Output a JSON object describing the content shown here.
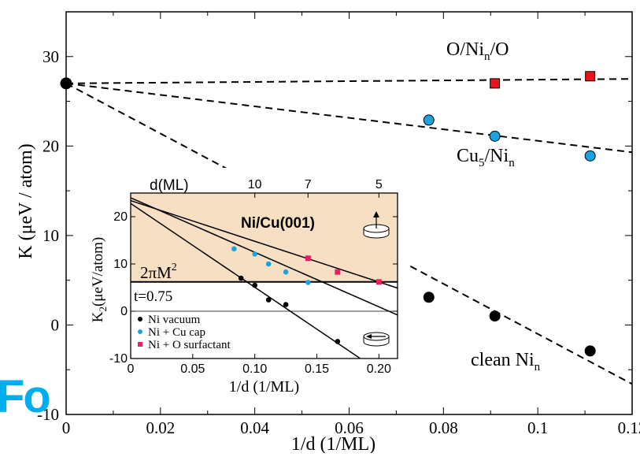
{
  "watermark": "Fo",
  "chart_data": [
    {
      "type": "scatter",
      "title": "",
      "xlabel": "1/d (1/ML)",
      "ylabel": "K (μeV / atom)",
      "xlim": [
        0,
        0.12
      ],
      "ylim": [
        -10,
        35
      ],
      "xticks": [
        0,
        0.02,
        0.04,
        0.06,
        0.08,
        0.1,
        0.12
      ],
      "xtick_labels": [
        "0",
        "0.02",
        "0.04",
        "0.06",
        "0.08",
        "0.1",
        "0.12"
      ],
      "yticks": [
        -10,
        0,
        10,
        20,
        30
      ],
      "ytick_labels": [
        "-10",
        "0",
        "10",
        "20",
        "30"
      ],
      "grid": false,
      "origin_point": {
        "x": 0,
        "y": 27,
        "color": "#000000"
      },
      "series": [
        {
          "name": "O/Ni_n/O",
          "label_main": "O/Ni",
          "label_sub": "n",
          "label_tail": "/O",
          "marker": "square",
          "color": "#e8141b",
          "x": [
            0.0909,
            0.1111
          ],
          "y": [
            27.0,
            27.8
          ],
          "fit": {
            "x0": 0,
            "y0": 27.0,
            "x1": 0.12,
            "y1": 27.5
          }
        },
        {
          "name": "Cu_5/Ni_n",
          "label_main": "Cu",
          "label_sub1": "5",
          "label_mid": "/Ni",
          "label_sub2": "n",
          "marker": "circle",
          "color": "#1aa3e0",
          "x": [
            0.0769,
            0.0909,
            0.1111
          ],
          "y": [
            22.9,
            21.1,
            18.9
          ],
          "fit": {
            "x0": 0,
            "y0": 27.0,
            "x1": 0.12,
            "y1": 19.3
          }
        },
        {
          "name": "clean Ni_n",
          "label_main": "clean Ni",
          "label_sub": "n",
          "marker": "circle",
          "color": "#000000",
          "x": [
            0.0769,
            0.0909,
            0.1111
          ],
          "y": [
            3.1,
            1.0,
            -2.9
          ],
          "fit": {
            "x0": 0,
            "y0": 27.0,
            "x1": 0.12,
            "y1": -6.6
          }
        }
      ]
    },
    {
      "type": "scatter",
      "title": "Ni/Cu(001)",
      "xlabel": "1/d (1/ML)",
      "ylabel": "K_2(μeV/atom)",
      "ylabel_main": "K",
      "ylabel_sub": "2",
      "ylabel_tail": "(μeV/atom)",
      "top_axis_label": "d(ML)",
      "top_ticks": [
        10,
        7,
        5
      ],
      "xlim": [
        0,
        0.215
      ],
      "ylim": [
        -10,
        25
      ],
      "xticks": [
        0,
        0.05,
        0.1,
        0.15,
        0.2
      ],
      "xtick_labels": [
        "0",
        "0.05",
        "0.10",
        "0.15",
        "0.20"
      ],
      "yticks": [
        -10,
        0,
        10,
        20
      ],
      "ytick_labels": [
        "-10",
        "0",
        "10",
        "20"
      ],
      "shaded_region": {
        "from_y": 6.2,
        "to_y": 25,
        "color": "#f7dfc4"
      },
      "threshold": {
        "y": 6.2,
        "label": "2πM",
        "label_sup": "2"
      },
      "annotation": "t=0.75",
      "zero_line": true,
      "series": [
        {
          "name": "Ni vacuum",
          "marker": "circle",
          "color": "#000000",
          "x": [
            0.0889,
            0.1,
            0.1111,
            0.125,
            0.1667
          ],
          "y": [
            7.0,
            5.5,
            2.4,
            1.4,
            -6.4
          ],
          "fit": {
            "x0": 0,
            "y0": 22.8,
            "x1": 0.185,
            "y1": -10
          }
        },
        {
          "name": "Ni + Cu cap",
          "marker": "circle",
          "color": "#1aa3e0",
          "x": [
            0.0833,
            0.1,
            0.1111,
            0.125,
            0.1429
          ],
          "y": [
            13.2,
            12.1,
            10.0,
            8.3,
            6.1
          ],
          "fit": {
            "x0": 0,
            "y0": 24.0,
            "x1": 0.215,
            "y1": -0.8
          }
        },
        {
          "name": "Ni + O surfactant",
          "marker": "square",
          "color": "#e8205f",
          "x": [
            0.1429,
            0.1667,
            0.2
          ],
          "y": [
            11.2,
            8.3,
            6.2
          ],
          "fit": {
            "x0": 0,
            "y0": 23.4,
            "x1": 0.215,
            "y1": 4.9
          }
        }
      ]
    }
  ]
}
